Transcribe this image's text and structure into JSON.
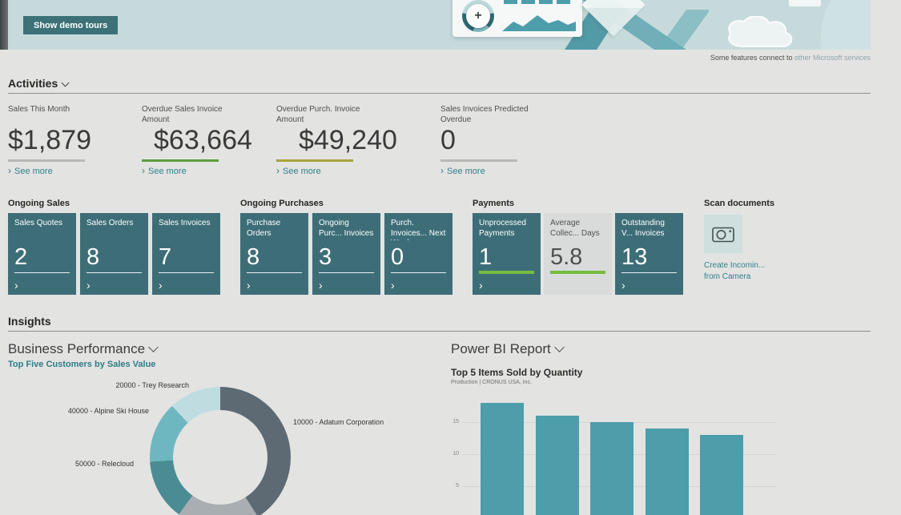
{
  "colors": {
    "accent_teal": "#3d6e78",
    "tile_light_bg": "#d9dbda",
    "positive_green": "#76bc40",
    "kpi_green": "#5f9d3e",
    "kpi_olive": "#a8a33f",
    "kpi_gray": "#b9b9b9",
    "bar_teal": "#4d9dab",
    "link_teal": "#2f808a",
    "banner_bg": "#c7dadb"
  },
  "banner": {
    "button_label": "Show demo tours",
    "note": {
      "prefix": "Some features connect to ",
      "link": "other Microsoft services"
    }
  },
  "activities": {
    "title": "Activities",
    "see_more": "See more",
    "kpis": [
      {
        "label": "Sales This Month",
        "value": "$1,879",
        "underline": "#b9b9b9"
      },
      {
        "label": "Overdue Sales Invoice Amount",
        "value": "$63,664",
        "underline": "#5f9d3e"
      },
      {
        "label": "Overdue Purch. Invoice Amount",
        "value": "$49,240",
        "underline": "#a8a33f"
      },
      {
        "label": "Sales Invoices Predicted Overdue",
        "value": "0",
        "underline": "#b9b9b9"
      }
    ]
  },
  "tile_groups": [
    {
      "title": "Ongoing Sales",
      "tiles": [
        {
          "label": "Sales Quotes",
          "value": "2",
          "bar": "rgba(255,255,255,0.9)"
        },
        {
          "label": "Sales Orders",
          "value": "8",
          "bar": "rgba(255,255,255,0.9)"
        },
        {
          "label": "Sales Invoices",
          "value": "7",
          "bar": "rgba(255,255,255,0.9)"
        }
      ]
    },
    {
      "title": "Ongoing Purchases",
      "tiles": [
        {
          "label": "Purchase Orders",
          "value": "8",
          "bar": "rgba(255,255,255,0.9)"
        },
        {
          "label": "Ongoing Purc... Invoices",
          "value": "3",
          "bar": "rgba(255,255,255,0.9)"
        },
        {
          "label": "Purch. Invoices... Next Week",
          "value": "0",
          "bar": "rgba(255,255,255,0.9)"
        }
      ]
    },
    {
      "title": "Payments",
      "tiles": [
        {
          "label": "Unprocessed Payments",
          "value": "1",
          "bar": "#76bc40"
        },
        {
          "label": "Average Collec... Days",
          "value": "5.8",
          "bar": "#76bc40"
        },
        {
          "label": "Outstanding V... Invoices",
          "value": "13",
          "bar": "rgba(255,255,255,0.9)"
        }
      ]
    }
  ],
  "scan": {
    "title": "Scan documents",
    "line1": "Create Incomin...",
    "line2": "from Camera"
  },
  "insights": {
    "title": "Insights"
  },
  "chart_data": [
    {
      "type": "pie",
      "donut": true,
      "section": "Business Performance",
      "title": "Top Five Customers by Sales Value",
      "legend_position": "callout-labels",
      "segments": [
        {
          "label": "10000 - Adatum Corporation",
          "percent": 41,
          "color": "#5d6a73"
        },
        {
          "label": "",
          "percent": 19,
          "color": "#a9aeb2"
        },
        {
          "label": "50000 - Relecloud",
          "percent": 14,
          "color": "#4b8c94"
        },
        {
          "label": "40000 - Alpine Ski House",
          "percent": 14,
          "color": "#6fb7c0"
        },
        {
          "label": "20000 - Trey Research",
          "percent": 12,
          "color": "#bfdde0"
        }
      ]
    },
    {
      "type": "bar",
      "section": "Power BI Report",
      "title": "Top 5 Items Sold by Quantity",
      "subtitle": "Production | CRONUS USA, Inc.",
      "categories": [
        "",
        "",
        "",
        "",
        ""
      ],
      "values": [
        18,
        16,
        15,
        14,
        13
      ],
      "yticks": [
        15,
        10,
        5
      ],
      "ylim": [
        0,
        19
      ],
      "grid": true,
      "bar_color": "#4d9dab"
    }
  ]
}
